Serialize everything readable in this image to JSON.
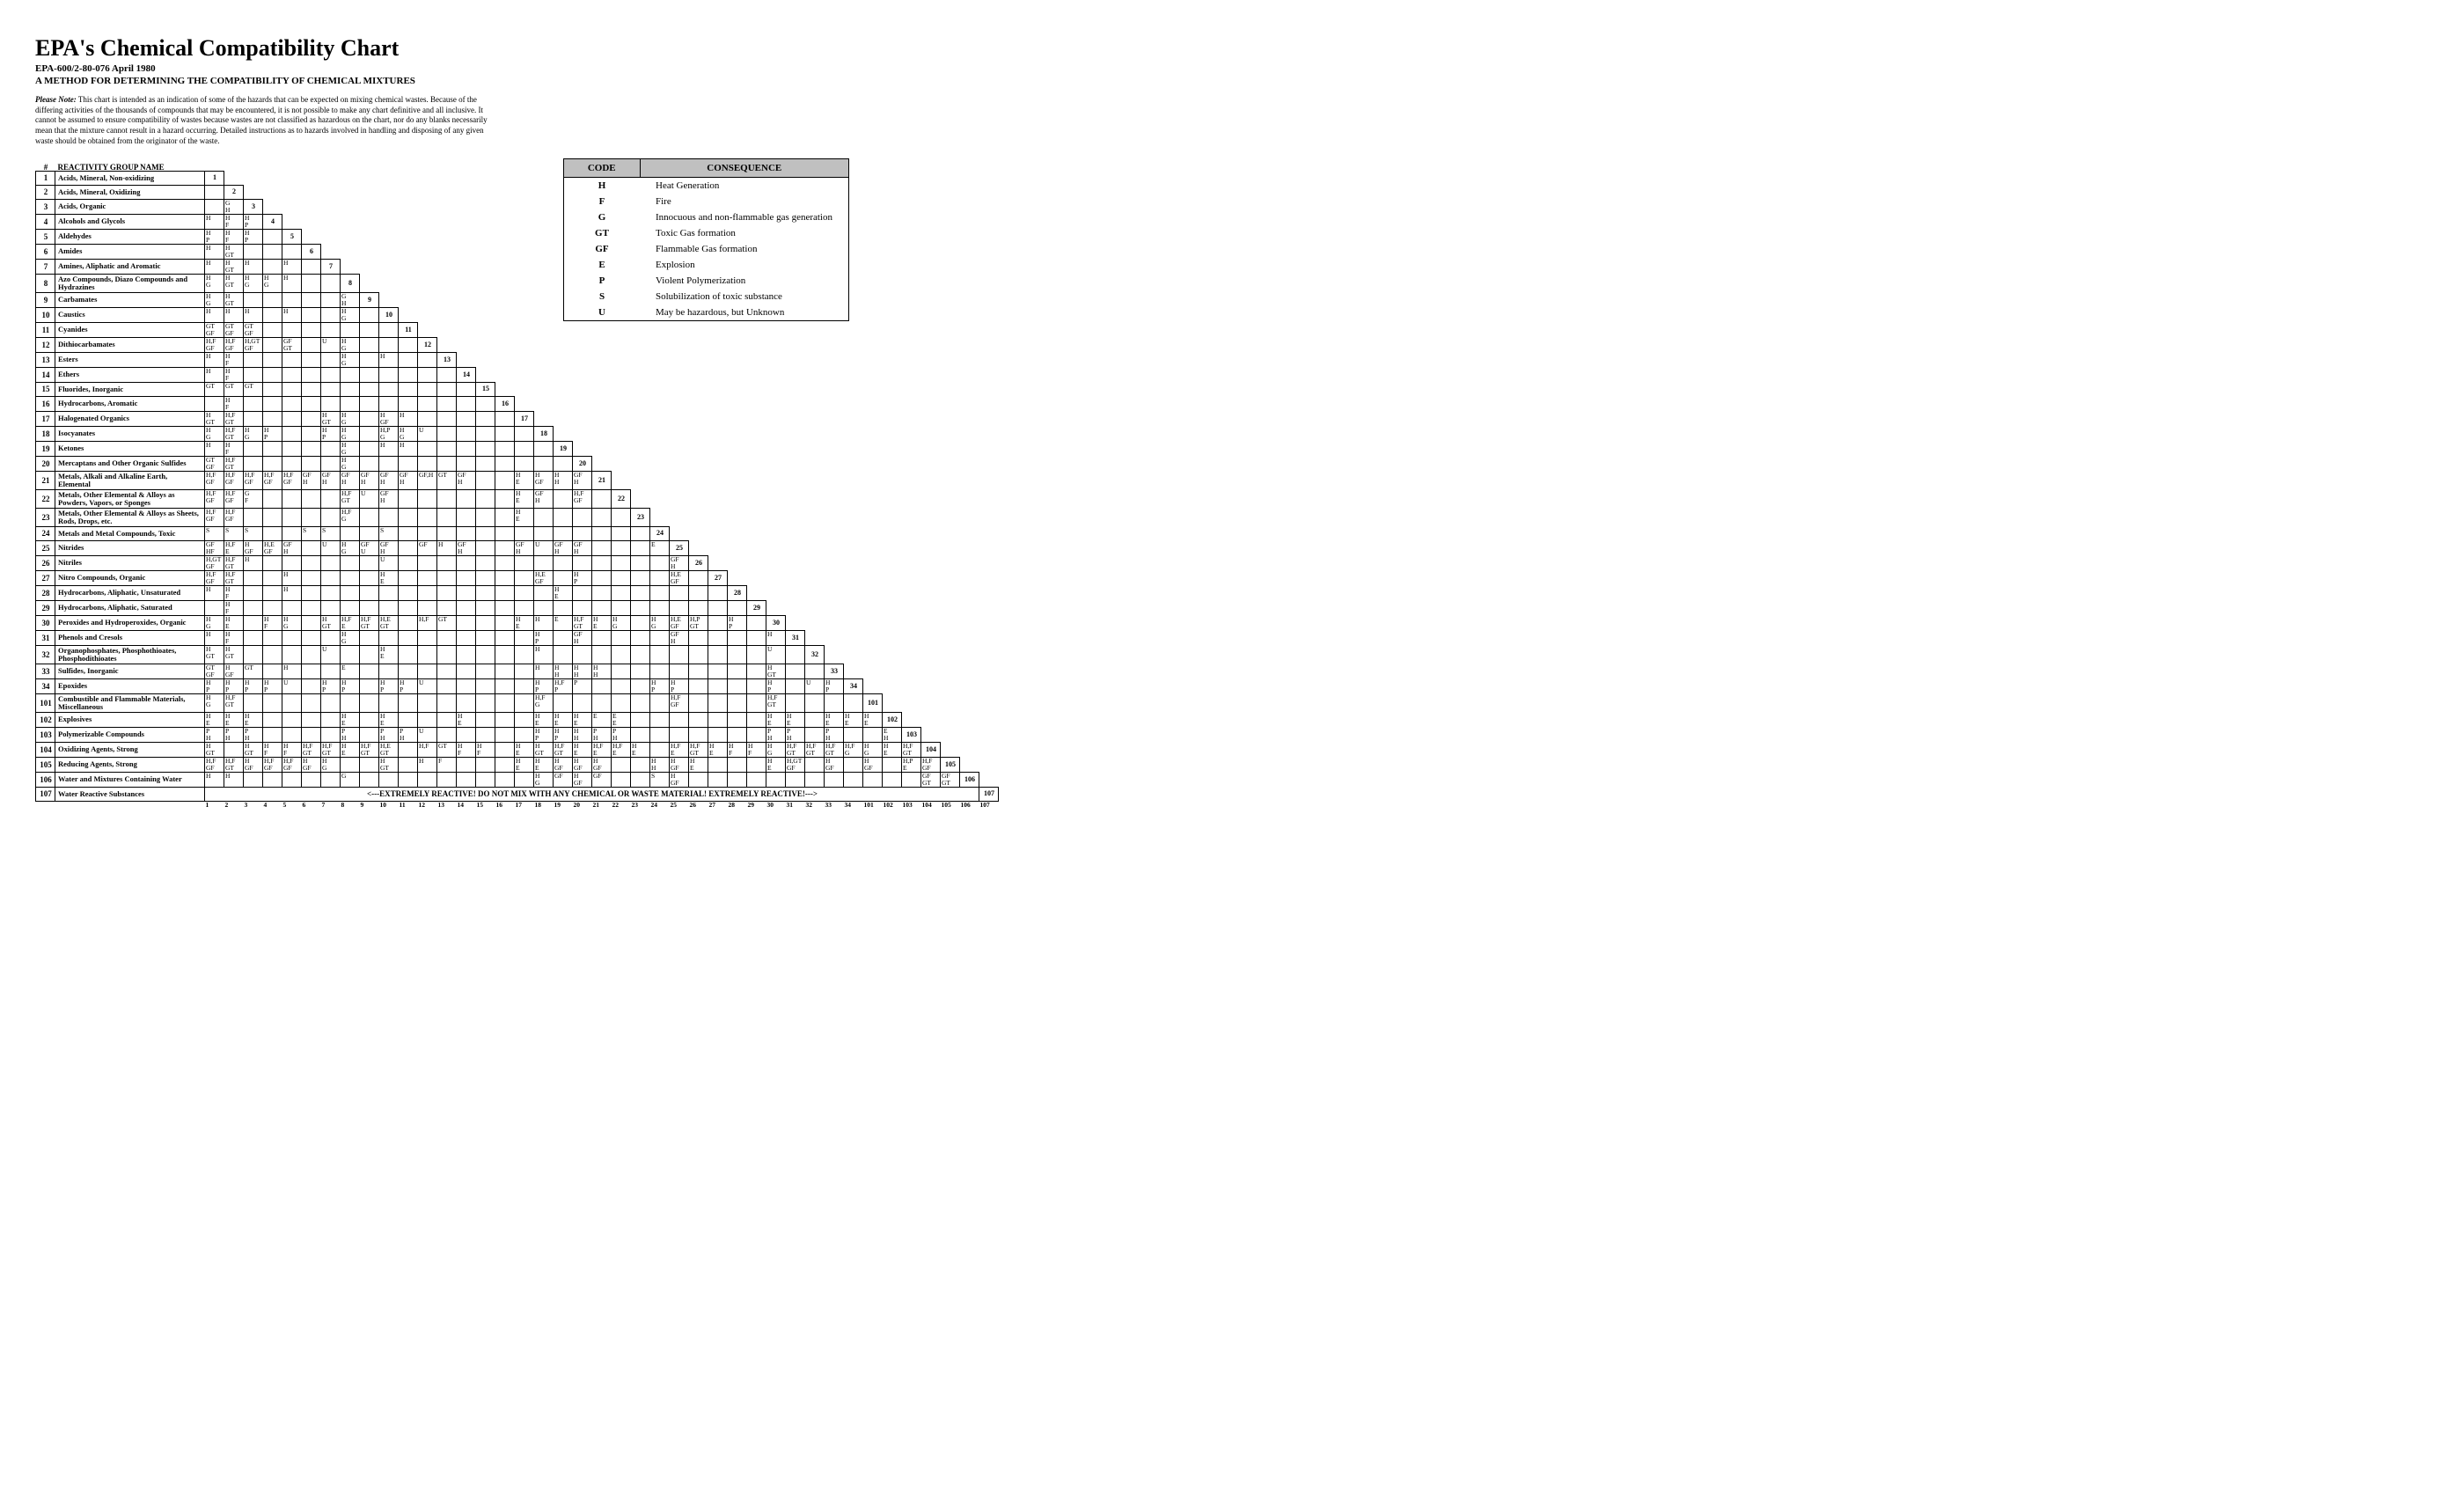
{
  "title": "EPA's Chemical Compatibility Chart",
  "subtitle": "EPA-600/2-80-076 April 1980",
  "subtitle2": "A METHOD FOR DETERMINING THE COMPATIBILITY OF CHEMICAL MIXTURES",
  "note_label": "Please Note:",
  "note": "This chart is intended as an indication of some of the hazards that can be expected on mixing chemical wastes. Because of the differing activities of the thousands of compounds that may be encountered, it is not possible to make any chart definitive and all inclusive. It cannot be assumed to ensure compatibility of wastes because wastes are not classified as hazardous on the chart, nor do any blanks necessarily mean that the mixture cannot result in a hazard occurring. Detailed instructions as to hazards involved in handling and disposing of any given waste should be obtained from the originator of the waste.",
  "col_header_num": "#",
  "col_header_name": "REACTIVITY GROUP NAME",
  "legend": {
    "headers": [
      "CODE",
      "CONSEQUENCE"
    ],
    "rows": [
      [
        "H",
        "Heat Generation"
      ],
      [
        "F",
        "Fire"
      ],
      [
        "G",
        "Innocuous and non-flammable gas generation"
      ],
      [
        "GT",
        "Toxic Gas formation"
      ],
      [
        "GF",
        "Flammable Gas formation"
      ],
      [
        "E",
        "Explosion"
      ],
      [
        "P",
        "Violent Polymerization"
      ],
      [
        "S",
        "Solubilization of toxic substance"
      ],
      [
        "U",
        "May be hazardous, but Unknown"
      ]
    ]
  },
  "warning": "<---EXTREMELY REACTIVE!    DO NOT MIX WITH ANY CHEMICAL OR WASTE MATERIAL!    EXTREMELY REACTIVE!--->",
  "groups": [
    {
      "num": "1",
      "name": "Acids, Mineral, Non-oxidizing"
    },
    {
      "num": "2",
      "name": "Acids, Mineral, Oxidizing"
    },
    {
      "num": "3",
      "name": "Acids, Organic"
    },
    {
      "num": "4",
      "name": "Alcohols and Glycols"
    },
    {
      "num": "5",
      "name": "Aldehydes"
    },
    {
      "num": "6",
      "name": "Amides"
    },
    {
      "num": "7",
      "name": "Amines, Aliphatic and Aromatic"
    },
    {
      "num": "8",
      "name": "Azo Compounds, Diazo Compounds and Hydrazines"
    },
    {
      "num": "9",
      "name": "Carbamates"
    },
    {
      "num": "10",
      "name": "Caustics"
    },
    {
      "num": "11",
      "name": "Cyanides"
    },
    {
      "num": "12",
      "name": "Dithiocarbamates"
    },
    {
      "num": "13",
      "name": "Esters"
    },
    {
      "num": "14",
      "name": "Ethers"
    },
    {
      "num": "15",
      "name": "Fluorides, Inorganic"
    },
    {
      "num": "16",
      "name": "Hydrocarbons, Aromatic"
    },
    {
      "num": "17",
      "name": "Halogenated Organics"
    },
    {
      "num": "18",
      "name": "Isocyanates"
    },
    {
      "num": "19",
      "name": "Ketones"
    },
    {
      "num": "20",
      "name": "Mercaptans and Other Organic Sulfides"
    },
    {
      "num": "21",
      "name": "Metals, Alkali and Alkaline Earth, Elemental"
    },
    {
      "num": "22",
      "name": "Metals, Other Elemental & Alloys as Powders, Vapors, or Sponges"
    },
    {
      "num": "23",
      "name": "Metals, Other Elemental & Alloys as Sheets, Rods, Drops, etc."
    },
    {
      "num": "24",
      "name": "Metals and Metal Compounds, Toxic"
    },
    {
      "num": "25",
      "name": "Nitrides"
    },
    {
      "num": "26",
      "name": "Nitriles"
    },
    {
      "num": "27",
      "name": "Nitro Compounds, Organic"
    },
    {
      "num": "28",
      "name": "Hydrocarbons, Aliphatic, Unsaturated"
    },
    {
      "num": "29",
      "name": "Hydrocarbons, Aliphatic, Saturated"
    },
    {
      "num": "30",
      "name": "Peroxides and Hydroperoxides, Organic"
    },
    {
      "num": "31",
      "name": "Phenols and Cresols"
    },
    {
      "num": "32",
      "name": "Organophosphates, Phosphothioates, Phosphodithioates"
    },
    {
      "num": "33",
      "name": "Sulfides, Inorganic"
    },
    {
      "num": "34",
      "name": "Epoxides"
    },
    {
      "num": "101",
      "name": "Combustible and Flammable Materials, Miscellaneous"
    },
    {
      "num": "102",
      "name": "Explosives"
    },
    {
      "num": "103",
      "name": "Polymerizable Compounds"
    },
    {
      "num": "104",
      "name": "Oxidizing Agents, Strong"
    },
    {
      "num": "105",
      "name": "Reducing Agents, Strong"
    },
    {
      "num": "106",
      "name": "Water and Mixtures Containing Water"
    },
    {
      "num": "107",
      "name": "Water Reactive Substances"
    }
  ],
  "cells": {
    "3": {
      "1": "G\nH"
    },
    "4": {
      "0": "H",
      "1": "H\nF",
      "2": "H\nP"
    },
    "5": {
      "0": "H\nP",
      "1": "H\nF",
      "2": "H\nP"
    },
    "6": {
      "0": "H",
      "1": "H\nGT"
    },
    "7": {
      "0": "H",
      "1": "H\nGT",
      "2": "H",
      "4": "H"
    },
    "8": {
      "0": "H\nG",
      "1": "H\nGT",
      "2": "H\nG",
      "3": "H\nG",
      "4": "H"
    },
    "9": {
      "0": "H\nG",
      "1": "H\nGT",
      "7": "G\nH"
    },
    "10": {
      "0": "H",
      "1": "H",
      "2": "H",
      "4": "H",
      "7": "H\nG"
    },
    "11": {
      "0": "GT\nGF",
      "1": "GT\nGF",
      "2": "GT\nGF"
    },
    "12": {
      "0": "H,F\nGF",
      "1": "H,F\nGF",
      "2": "H,GT\nGF",
      "4": "GF\nGT",
      "6": "U",
      "7": "H\nG"
    },
    "13": {
      "0": "H",
      "1": "H\nF",
      "7": "H\nG",
      "9": "H"
    },
    "14": {
      "0": "H",
      "1": "H\nF"
    },
    "15": {
      "0": "GT",
      "1": "GT",
      "2": "GT"
    },
    "16": {
      "1": "H\nF"
    },
    "17": {
      "0": "H\nGT",
      "1": "H,F\nGT",
      "6": "H\nGT",
      "7": "H\nG",
      "9": "H\nGF",
      "10": "H"
    },
    "18": {
      "0": "H\nG",
      "1": "H,F\nGT",
      "2": "H\nG",
      "3": "H\nP",
      "6": "H\nP",
      "7": "H\nG",
      "9": "H,P\nG",
      "10": "H\nG",
      "11": "U"
    },
    "19": {
      "0": "H",
      "1": "H\nF",
      "7": "H\nG",
      "9": "H",
      "10": "H"
    },
    "20": {
      "0": "GT\nGF",
      "1": "H,F\nGT",
      "7": "H\nG"
    },
    "21": {
      "0": "H,F\nGF",
      "1": "H,F\nGF",
      "2": "H,F\nGF",
      "3": "H,F\nGF",
      "4": "H,F\nGF",
      "5": "GF\nH",
      "6": "GF\nH",
      "7": "GF\nH",
      "8": "GF\nH",
      "9": "GF\nH",
      "10": "GF\nH",
      "11": "GF,H",
      "12": "GT",
      "13": "GF\nH",
      "16": "H\nE",
      "17": "H\nGF",
      "18": "H\nH",
      "19": "GF\nH"
    },
    "22": {
      "0": "H,F\nGF",
      "1": "H,F\nGF",
      "2": "G\nF",
      "7": "H,F\nGT",
      "8": "U",
      "9": "GF\nH",
      "16": "H\nE",
      "17": "GF\nH",
      "19": "H,F\nGF"
    },
    "23": {
      "0": "H,F\nGF",
      "1": "H,F\nGF",
      "7": "H,F\nG",
      "16": "H\nE"
    },
    "24": {
      "0": "S",
      "1": "S",
      "2": "S",
      "5": "S",
      "6": "S",
      "9": "S"
    },
    "25": {
      "0": "GF\nHF",
      "1": "H,F\nE",
      "2": "H\nGF",
      "3": "H,E\nGF",
      "4": "GF\nH",
      "6": "U",
      "7": "H\nG",
      "8": "GF\nU",
      "9": "GF\nH",
      "11": "GF",
      "12": "H",
      "13": "GF\nH",
      "16": "GF\nH",
      "17": "U",
      "18": "GF\nH",
      "19": "GF\nH",
      "23": "E"
    },
    "26": {
      "0": "H,GT\nGF",
      "1": "H,F\nGT",
      "2": "H",
      "9": "U",
      "24": "GF\nH"
    },
    "27": {
      "0": "H,F\nGF",
      "1": "H,F\nGT",
      "4": "H",
      "9": "H\nE",
      "17": "H,E\nGF",
      "19": "H\nP",
      "24": "H,E\nGF"
    },
    "28": {
      "0": "H",
      "1": "H\nF",
      "4": "H",
      "18": "H\nE"
    },
    "29": {
      "1": "H\nF"
    },
    "30": {
      "0": "H\nG",
      "1": "H\nE",
      "3": "H\nF",
      "4": "H\nG",
      "6": "H\nGT",
      "7": "H,F\nE",
      "8": "H,F\nGT",
      "9": "H,E\nGT",
      "11": "H,F",
      "12": "GT",
      "16": "H\nE",
      "17": "H",
      "18": "E",
      "19": "H,F\nGT",
      "20": "H\nE",
      "21": "H\nG",
      "23": "H\nG",
      "24": "H,E\nGF",
      "25": "H,P\nGT",
      "27": "H\nP"
    },
    "31": {
      "0": "H",
      "1": "H\nF",
      "7": "H\nG",
      "17": "H\nP",
      "19": "GF\nH",
      "24": "GF\nH",
      "29": "H"
    },
    "32": {
      "0": "H\nGT",
      "1": "H\nGT",
      "6": "U",
      "9": "H\nE",
      "17": "H",
      "29": "U"
    },
    "33": {
      "0": "GT\nGF",
      "1": "H\nGF",
      "2": "GT",
      "4": "H",
      "7": "E",
      "17": "H",
      "18": "H\nH",
      "19": "H\nH",
      "20": "H\nH",
      "29": "H\nGT"
    },
    "34": {
      "0": "H\nP",
      "1": "H\nP",
      "2": "H\nP",
      "3": "H\nP",
      "4": "U",
      "6": "H\nP",
      "7": "H\nP",
      "9": "H\nP",
      "10": "H\nP",
      "11": "U",
      "17": "H\nP",
      "18": "H,F\nP",
      "19": "P",
      "23": "H\nP",
      "24": "H\nP",
      "29": "H\nP",
      "31": "U",
      "32": "H\nP"
    },
    "101": {
      "0": "H\nG",
      "1": "H,F\nGT",
      "17": "H,F\nG",
      "24": "H,F\nGF",
      "29": "H,F\nGT"
    },
    "102": {
      "0": "H\nE",
      "1": "H\nE",
      "2": "H\nE",
      "7": "H\nE",
      "9": "H\nE",
      "13": "H\nE",
      "17": "H\nE",
      "18": "H\nE",
      "19": "H\nE",
      "20": "E",
      "21": "E\nE",
      "29": "H\nE",
      "30": "H\nE",
      "32": "H\nE",
      "33": "H\nE",
      "34": "H\nE"
    },
    "103": {
      "0": "P\nH",
      "1": "P\nH",
      "2": "P\nH",
      "7": "P\nH",
      "9": "P\nH",
      "10": "P\nH",
      "11": "U",
      "17": "H\nP",
      "18": "H\nP",
      "19": "H\nH",
      "20": "P\nH",
      "21": "P\nH",
      "29": "P\nH",
      "30": "P\nH",
      "32": "P\nH",
      "35": "E\nH"
    },
    "104": {
      "0": "H\nGT",
      "2": "H\nGT",
      "3": "H\nF",
      "4": "H\nF",
      "5": "H,F\nGT",
      "6": "H,F\nGT",
      "7": "H\nE",
      "8": "H,F\nGT",
      "9": "H,E\nGT",
      "11": "H,F",
      "12": "GT",
      "13": "H\nF",
      "14": "H\nF",
      "16": "H\nE",
      "17": "H\nGT",
      "18": "H,F\nGT",
      "19": "H\nE",
      "20": "H,F\nE",
      "21": "H,F\nE",
      "22": "H\nE",
      "24": "H,F\nE",
      "25": "H,F\nGT",
      "26": "H\nE",
      "27": "H\nF",
      "28": "H\nF",
      "29": "H\nG",
      "30": "H,F\nGT",
      "31": "H,F\nGT",
      "32": "H,F\nGT",
      "33": "H,F\nG",
      "34": "H\nG",
      "35": "H\nE",
      "36": "H,F\nGT"
    },
    "105": {
      "0": "H,F\nGF",
      "1": "H,F\nGT",
      "2": "H\nGF",
      "3": "H,F\nGF",
      "4": "H,F\nGF",
      "5": "H\nGF",
      "6": "H\nG",
      "9": "H\nGT",
      "11": "H",
      "12": "F",
      "16": "H\nE",
      "17": "H\nE",
      "18": "H\nGF",
      "19": "H\nGF",
      "20": "H\nGF",
      "23": "H\nH",
      "24": "H\nGF",
      "25": "H\nE",
      "29": "H\nE",
      "30": "H,GT\nGF",
      "32": "H\nGF",
      "34": "H\nGF",
      "36": "H,P\nE",
      "37": "H,F\nGF"
    },
    "106": {
      "0": "H",
      "1": "H",
      "7": "G",
      "17": "H\nG",
      "18": "GF",
      "19": "H\nGF",
      "20": "GF",
      "23": "S",
      "24": "H\nGF",
      "37": "GF\nGT",
      "38": "GF\nGT"
    }
  },
  "bottom_axis": [
    "1",
    "2",
    "3",
    "4",
    "5",
    "6",
    "7",
    "8",
    "9",
    "10",
    "11",
    "12",
    "13",
    "14",
    "15",
    "16",
    "17",
    "18",
    "19",
    "20",
    "21",
    "22",
    "23",
    "24",
    "25",
    "26",
    "27",
    "28",
    "29",
    "30",
    "31",
    "32",
    "33",
    "34",
    "101",
    "102",
    "103",
    "104",
    "105",
    "106",
    "107"
  ]
}
